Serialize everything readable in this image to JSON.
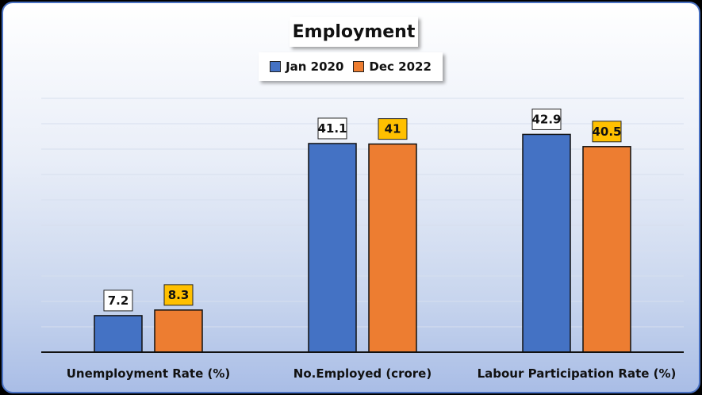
{
  "chart_data": {
    "type": "bar",
    "title": "Employment",
    "categories": [
      "Unemployment Rate (%)",
      "No.Employed (crore)",
      "Labour Participation Rate (%)"
    ],
    "series": [
      {
        "name": "Jan 2020",
        "values": [
          7.2,
          41.1,
          42.9
        ],
        "value_labels": [
          "7.2",
          "41.1",
          "42.9"
        ],
        "color": "#4472c4",
        "label_bg": "#ffffff"
      },
      {
        "name": "Dec 2022",
        "values": [
          8.3,
          41,
          40.5
        ],
        "value_labels": [
          "8.3",
          "41",
          "40.5"
        ],
        "color": "#ed7d31",
        "label_bg": "#ffc000"
      }
    ],
    "ylim": [
      0,
      50
    ],
    "grid": true,
    "legend": "top-center"
  }
}
